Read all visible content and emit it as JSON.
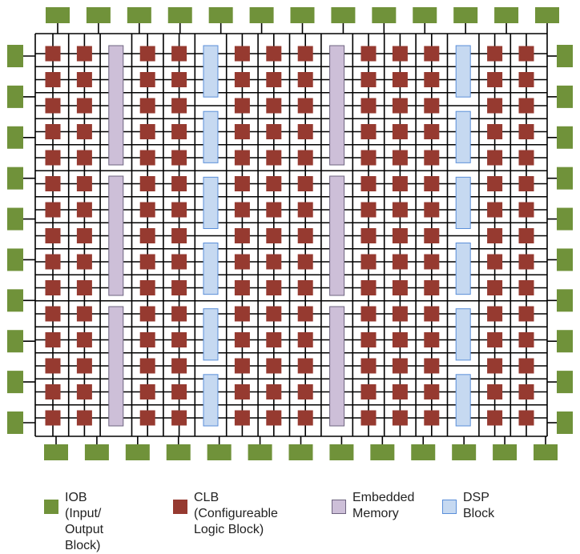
{
  "colors": {
    "iob": "#70923A",
    "clb": "#963A30",
    "memory_fill": "#CDBFD8",
    "memory_stroke": "#6E6480",
    "dsp_fill": "#C6D9F1",
    "dsp_stroke": "#5B8FD9",
    "wire": "#000000"
  },
  "fabric": {
    "top_iob_count": 13,
    "bottom_iob_count": 13,
    "left_iob_count": 10,
    "right_iob_count": 10,
    "clb_rows": 15,
    "clb_columns_left_to_right": [
      "clb",
      "clb",
      "memory",
      "clb",
      "clb",
      "dsp",
      "clb",
      "clb",
      "clb",
      "memory",
      "clb",
      "clb",
      "clb",
      "dsp",
      "clb",
      "clb"
    ],
    "memory_blocks_per_column": 3,
    "dsp_blocks_per_column": 6
  },
  "legend": [
    {
      "key": "iob",
      "label": "IOB (Input/\nOutput Block)",
      "swatch_icon": "iob-swatch-icon"
    },
    {
      "key": "clb",
      "label": "CLB (Configureable\nLogic Block)",
      "swatch_icon": "clb-swatch-icon"
    },
    {
      "key": "memory",
      "label": "Embedded\nMemory",
      "swatch_icon": "memory-swatch-icon"
    },
    {
      "key": "dsp",
      "label": "DSP Block",
      "swatch_icon": "dsp-swatch-icon"
    }
  ]
}
